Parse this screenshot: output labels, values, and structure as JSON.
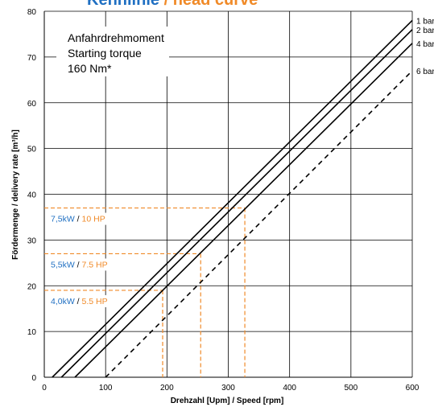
{
  "chart_data": {
    "type": "line",
    "title_part1": "Kennlinie",
    "title_sep": " / ",
    "title_part2": "head curve",
    "title_color1": "#1f6fc2",
    "title_color2": "#f08a28",
    "xlabel": "Drehzahl [Upm]  /  Speed [rpm]",
    "ylabel": "Fördermenge  /  delivery rate [m³/h]",
    "xlim": [
      0,
      600
    ],
    "ylim": [
      0,
      80
    ],
    "x_ticks": [
      0,
      100,
      200,
      300,
      400,
      500,
      600
    ],
    "y_ticks": [
      0,
      10,
      20,
      30,
      40,
      50,
      60,
      70,
      80
    ],
    "grid": true,
    "inset": {
      "line1": "Anfahrdrehmoment",
      "line2": "Starting torque",
      "line3": "160 Nm*"
    },
    "series": [
      {
        "name": "1 bar",
        "style": "solid",
        "x": [
          13,
          600
        ],
        "y": [
          0,
          78
        ]
      },
      {
        "name": "2 bar",
        "style": "solid",
        "x": [
          28,
          600
        ],
        "y": [
          0,
          76
        ]
      },
      {
        "name": "4 bar",
        "style": "solid",
        "x": [
          50,
          600
        ],
        "y": [
          0,
          73
        ]
      },
      {
        "name": "6 bar",
        "style": "dashed",
        "x": [
          100,
          600
        ],
        "y": [
          0,
          67
        ]
      }
    ],
    "power_markers": [
      {
        "kw": "7,5kW",
        "hp": "10 HP",
        "speed": 327,
        "rate": 37
      },
      {
        "kw": "5,5kW",
        "hp": "7.5 HP",
        "speed": 255,
        "rate": 27
      },
      {
        "kw": "4,0kW",
        "hp": "5.5 HP",
        "speed": 193,
        "rate": 19
      }
    ],
    "colors": {
      "kw": "#1f6fc2",
      "hp": "#f08a28",
      "marker_line": "#f08a28",
      "curve": "#000000",
      "grid": "#000000"
    }
  }
}
